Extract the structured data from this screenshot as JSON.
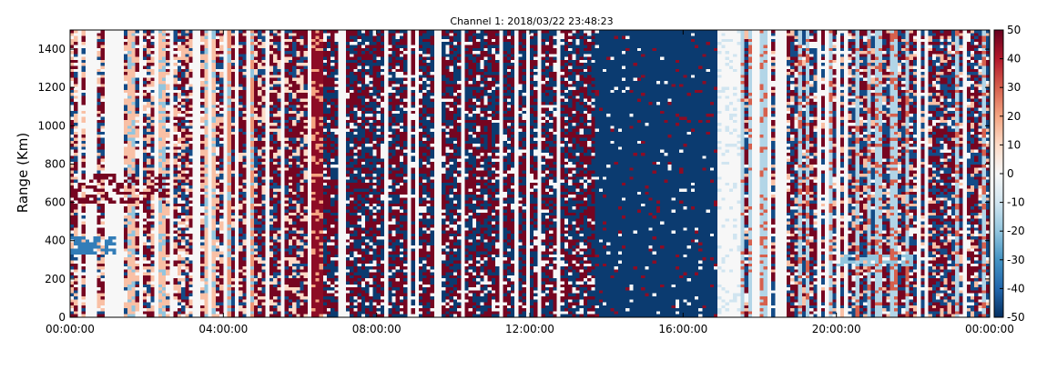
{
  "chart_data": {
    "type": "heatmap",
    "title": "Channel 1: 2018/03/22 23:48:23",
    "xlabel": "",
    "ylabel": "Range (Km)",
    "x_ticks": [
      "00:00:00",
      "04:00:00",
      "08:00:00",
      "12:00:00",
      "16:00:00",
      "20:00:00",
      "00:00:00"
    ],
    "x_range_hours": [
      0,
      24
    ],
    "y_ticks": [
      0,
      200,
      400,
      600,
      800,
      1000,
      1200,
      1400
    ],
    "y_range": [
      0,
      1500
    ],
    "colorbar": {
      "ticks": [
        50,
        40,
        30,
        20,
        10,
        0,
        -10,
        -20,
        -30,
        -40,
        -50
      ],
      "range": [
        -50,
        50
      ],
      "colormap": "diverging red-white-blue",
      "color_max": "#67001f",
      "color_mid": "#f7f7f7",
      "color_min": "#053061"
    },
    "regions": [
      {
        "hours": [
          0,
          4
        ],
        "description": "mixed noisy returns, predominantly positive with coherent echoes"
      },
      {
        "hours": [
          4,
          6.5
        ],
        "description": "positive values with strong red streak near 06:30"
      },
      {
        "hours": [
          6.5,
          13.7
        ],
        "description": "highly noisy alternating positive/negative"
      },
      {
        "hours": [
          13.7,
          16.9
        ],
        "description": "uniformly strong negative (~-50)"
      },
      {
        "hours": [
          16.9,
          17.5
        ],
        "description": "near zero"
      },
      {
        "hours": [
          17.5,
          24
        ],
        "description": "noisy mixed, stripes of negative and positive"
      }
    ],
    "grid": false
  }
}
